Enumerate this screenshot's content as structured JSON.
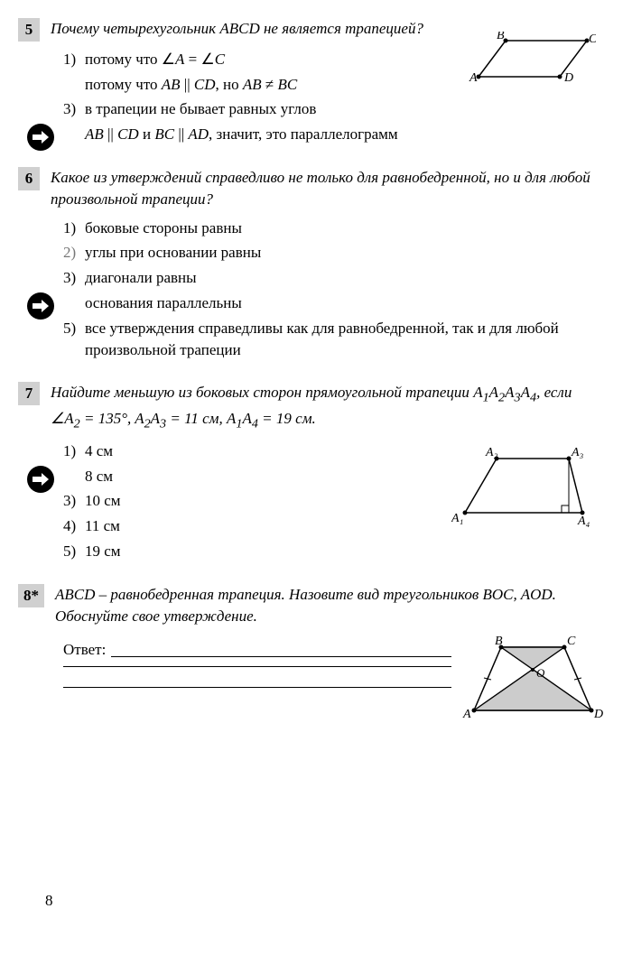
{
  "problems": {
    "p5": {
      "number": "5",
      "question": "Почему четырехугольник <i>ABCD</i> не является трапецией?",
      "options": [
        {
          "num": "1)",
          "text": "потому что ∠<i>A</i> = ∠<i>C</i>"
        },
        {
          "num": "",
          "text": "потому что <i>AB</i> || <i>CD</i>, но <i>AB</i> ≠ <i>BC</i>"
        },
        {
          "num": "3)",
          "text": "в трапеции не бывает равных углов"
        },
        {
          "num": "",
          "text": "<i>AB</i> || <i>CD</i> и <i>BC</i> || <i>AD</i>, значит, это параллелограмм",
          "arrow": true
        }
      ],
      "diagram": {
        "labels": {
          "A": "A",
          "B": "B",
          "C": "C",
          "D": "D"
        }
      }
    },
    "p6": {
      "number": "6",
      "question": "Какое из утверждений справедливо не только для равнобедренной, но и для любой произвольной трапеции?",
      "options": [
        {
          "num": "1)",
          "text": "боковые стороны равны"
        },
        {
          "num": "2)",
          "text": "углы при основании равны",
          "faded": true
        },
        {
          "num": "3)",
          "text": "диагонали равны"
        },
        {
          "num": "",
          "text": "основания параллельны",
          "arrow": true
        },
        {
          "num": "5)",
          "text": "все утверждения справедливы как для равнобедренной, так и для любой произвольной трапеции"
        }
      ]
    },
    "p7": {
      "number": "7",
      "question": "Найдите меньшую из боковых сторон прямоугольной трапеции <i>A</i><sub>1</sub><i>A</i><sub>2</sub><i>A</i><sub>3</sub><i>A</i><sub>4</sub>, если ∠<i>A</i><sub>2</sub> = 135°, <i>A</i><sub>2</sub><i>A</i><sub>3</sub> = 11 см, <i>A</i><sub>1</sub><i>A</i><sub>4</sub> = 19 см.",
      "options": [
        {
          "num": "1)",
          "text": "4 см"
        },
        {
          "num": "",
          "text": "8 см",
          "arrow": true
        },
        {
          "num": "3)",
          "text": "10 см"
        },
        {
          "num": "4)",
          "text": "11 см"
        },
        {
          "num": "5)",
          "text": "19 см"
        }
      ],
      "diagram": {
        "labels": {
          "A1": "A₁",
          "A2": "A₂",
          "A3": "A₃",
          "A4": "A₄"
        }
      }
    },
    "p8": {
      "number": "8*",
      "question": "<i>ABCD</i> – равнобедренная трапеция. Назовите вид треугольников <i>BOC</i>, <i>AOD</i>. Обоснуйте свое утверждение.",
      "answer_label": "Ответ:",
      "diagram": {
        "labels": {
          "A": "A",
          "B": "B",
          "C": "C",
          "D": "D",
          "O": "O"
        }
      }
    }
  },
  "page_number": "8"
}
